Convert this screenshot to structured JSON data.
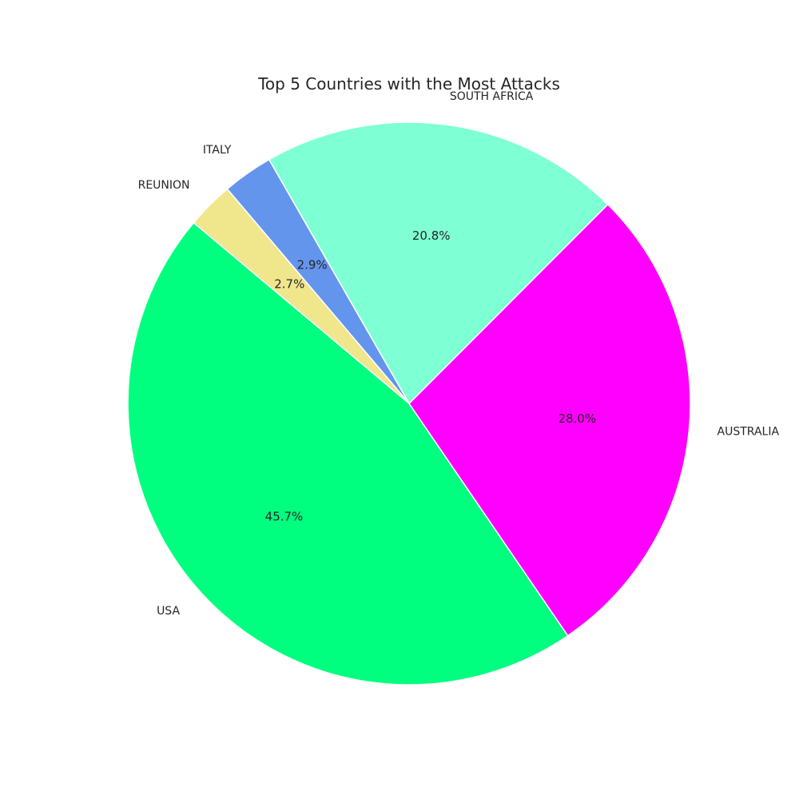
{
  "chart_data": {
    "type": "pie",
    "title": "Top 5 Countries with the Most Attacks",
    "slices": [
      {
        "label": "USA",
        "percent": 45.7,
        "pct_text": "45.7%",
        "color": "#00FF7F"
      },
      {
        "label": "AUSTRALIA",
        "percent": 28.0,
        "pct_text": "28.0%",
        "color": "#FF00FF"
      },
      {
        "label": "SOUTH AFRICA",
        "percent": 20.8,
        "pct_text": "20.8%",
        "color": "#7FFFD4"
      },
      {
        "label": "ITALY",
        "percent": 2.9,
        "pct_text": "2.9%",
        "color": "#6495ED"
      },
      {
        "label": "REUNION",
        "percent": 2.7,
        "pct_text": "2.7%",
        "color": "#F0E68C"
      }
    ],
    "start_angle_deg": 140,
    "direction": "counterclockwise"
  }
}
